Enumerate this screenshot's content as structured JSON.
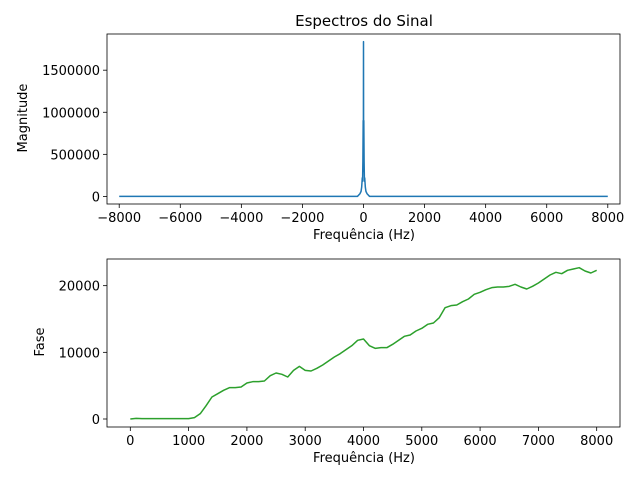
{
  "chart_data": [
    {
      "type": "line",
      "title": "Espectros do Sinal",
      "xlabel": "Frequência (Hz)",
      "ylabel": "Magnitude",
      "xlim": [
        -8400,
        8400
      ],
      "ylim": [
        -90000,
        1930000
      ],
      "xticks": [
        -8000,
        -6000,
        -4000,
        -2000,
        0,
        2000,
        4000,
        6000,
        8000
      ],
      "xtick_labels": [
        "−8000",
        "−6000",
        "−4000",
        "−2000",
        "0",
        "2000",
        "4000",
        "6000",
        "8000"
      ],
      "yticks": [
        0,
        500000,
        1000000,
        1500000
      ],
      "ytick_labels": [
        "0",
        "500000",
        "1000000",
        "1500000"
      ],
      "grid": false,
      "series": [
        {
          "color": "#1f77b4",
          "x": [
            -8000,
            -200,
            -120,
            -80,
            -60,
            -40,
            -30,
            -20,
            -10,
            -5,
            0,
            5,
            10,
            20,
            30,
            40,
            60,
            80,
            120,
            200,
            8000
          ],
          "y": [
            0,
            0,
            30000,
            60000,
            110000,
            220000,
            180000,
            420000,
            900000,
            300000,
            1840000,
            300000,
            900000,
            420000,
            180000,
            220000,
            110000,
            60000,
            30000,
            0,
            0
          ]
        }
      ]
    },
    {
      "type": "line",
      "title": "",
      "xlabel": "Frequência (Hz)",
      "ylabel": "Fase",
      "xlim": [
        -400,
        8400
      ],
      "ylim": [
        -1200,
        24000
      ],
      "xticks": [
        0,
        1000,
        2000,
        3000,
        4000,
        5000,
        6000,
        7000,
        8000
      ],
      "xtick_labels": [
        "0",
        "1000",
        "2000",
        "3000",
        "4000",
        "5000",
        "6000",
        "7000",
        "8000"
      ],
      "yticks": [
        0,
        10000,
        20000
      ],
      "ytick_labels": [
        "0",
        "10000",
        "20000"
      ],
      "grid": false,
      "series": [
        {
          "color": "#2ca02c",
          "x": [
            0,
            100,
            200,
            400,
            600,
            800,
            1000,
            1100,
            1200,
            1300,
            1400,
            1500,
            1600,
            1700,
            1800,
            1900,
            2000,
            2100,
            2200,
            2300,
            2400,
            2500,
            2600,
            2700,
            2800,
            2900,
            3000,
            3100,
            3200,
            3300,
            3400,
            3500,
            3600,
            3700,
            3800,
            3900,
            4000,
            4100,
            4200,
            4300,
            4400,
            4500,
            4600,
            4700,
            4800,
            4900,
            5000,
            5100,
            5200,
            5300,
            5400,
            5500,
            5600,
            5700,
            5800,
            5900,
            6000,
            6100,
            6200,
            6300,
            6400,
            6500,
            6600,
            6700,
            6800,
            6900,
            7000,
            7100,
            7200,
            7300,
            7400,
            7500,
            7600,
            7700,
            7800,
            7900,
            8000
          ],
          "y": [
            0,
            100,
            50,
            50,
            50,
            50,
            50,
            200,
            800,
            2000,
            3300,
            3800,
            4300,
            4700,
            4700,
            4800,
            5400,
            5600,
            5600,
            5700,
            6500,
            6900,
            6700,
            6300,
            7300,
            7900,
            7300,
            7200,
            7600,
            8100,
            8700,
            9300,
            9800,
            10400,
            11000,
            11800,
            12000,
            11000,
            10600,
            10700,
            10700,
            11200,
            11800,
            12400,
            12600,
            13200,
            13600,
            14200,
            14400,
            15200,
            16700,
            17000,
            17100,
            17600,
            18000,
            18700,
            19000,
            19400,
            19700,
            19800,
            19800,
            19900,
            20200,
            19800,
            19500,
            19900,
            20400,
            21000,
            21600,
            22000,
            21800,
            22300,
            22500,
            22700,
            22200,
            21900,
            22300
          ]
        }
      ]
    }
  ]
}
